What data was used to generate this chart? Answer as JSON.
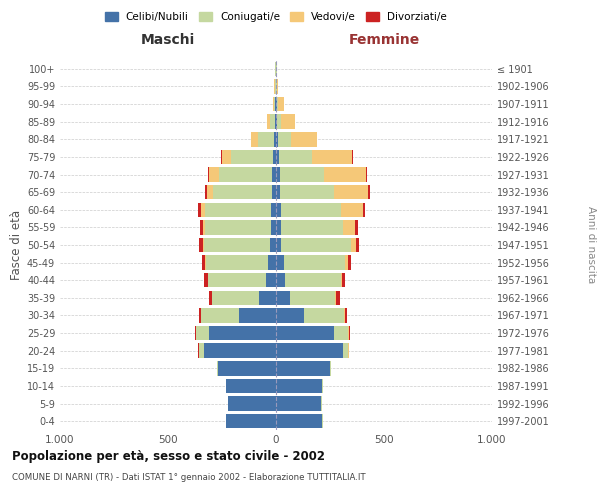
{
  "age_groups": [
    "0-4",
    "5-9",
    "10-14",
    "15-19",
    "20-24",
    "25-29",
    "30-34",
    "35-39",
    "40-44",
    "45-49",
    "50-54",
    "55-59",
    "60-64",
    "65-69",
    "70-74",
    "75-79",
    "80-84",
    "85-89",
    "90-94",
    "95-99",
    "100+"
  ],
  "birth_years": [
    "1997-2001",
    "1992-1996",
    "1987-1991",
    "1982-1986",
    "1977-1981",
    "1972-1976",
    "1967-1971",
    "1962-1966",
    "1957-1961",
    "1952-1956",
    "1947-1951",
    "1942-1946",
    "1937-1941",
    "1932-1936",
    "1927-1931",
    "1922-1926",
    "1917-1921",
    "1912-1916",
    "1907-1911",
    "1902-1906",
    "≤ 1901"
  ],
  "male": {
    "celibi": [
      230,
      220,
      230,
      270,
      335,
      310,
      170,
      80,
      45,
      35,
      30,
      25,
      25,
      20,
      20,
      15,
      10,
      5,
      3,
      2,
      2
    ],
    "coniugati": [
      2,
      2,
      2,
      5,
      20,
      60,
      175,
      215,
      270,
      290,
      305,
      305,
      305,
      270,
      245,
      195,
      75,
      25,
      8,
      3,
      2
    ],
    "vedovi": [
      0,
      0,
      0,
      0,
      2,
      2,
      2,
      2,
      2,
      3,
      5,
      8,
      15,
      30,
      45,
      40,
      30,
      12,
      5,
      2,
      1
    ],
    "divorziati": [
      0,
      0,
      0,
      0,
      2,
      5,
      10,
      15,
      15,
      15,
      15,
      15,
      15,
      8,
      5,
      3,
      2,
      0,
      0,
      0,
      0
    ]
  },
  "female": {
    "nubili": [
      215,
      210,
      215,
      250,
      310,
      270,
      130,
      65,
      40,
      35,
      25,
      22,
      22,
      20,
      18,
      12,
      8,
      5,
      3,
      2,
      2
    ],
    "coniugate": [
      2,
      2,
      2,
      5,
      25,
      65,
      185,
      210,
      260,
      285,
      320,
      290,
      280,
      250,
      205,
      155,
      60,
      20,
      8,
      3,
      2
    ],
    "vedove": [
      0,
      0,
      0,
      0,
      2,
      2,
      3,
      4,
      6,
      12,
      25,
      55,
      100,
      155,
      195,
      185,
      120,
      65,
      25,
      5,
      2
    ],
    "divorziate": [
      0,
      0,
      0,
      0,
      2,
      5,
      10,
      15,
      15,
      15,
      15,
      12,
      12,
      8,
      5,
      3,
      2,
      0,
      0,
      0,
      0
    ]
  },
  "colors": {
    "celibi": "#4472a8",
    "coniugati": "#c5d8a0",
    "vedovi": "#f5c878",
    "divorziati": "#cc2222"
  },
  "title": "Popolazione per età, sesso e stato civile - 2002",
  "subtitle": "COMUNE DI NARNI (TR) - Dati ISTAT 1° gennaio 2002 - Elaborazione TUTTITALIA.IT",
  "ylabel_left": "Fasce di età",
  "ylabel_right": "Anni di nascita",
  "xlabel_left": "Maschi",
  "xlabel_right": "Femmine",
  "xlim": 1000,
  "background_color": "#ffffff",
  "grid_color": "#cccccc",
  "legend_labels": [
    "Celibi/Nubili",
    "Coniugati/e",
    "Vedovi/e",
    "Divorziati/e"
  ]
}
